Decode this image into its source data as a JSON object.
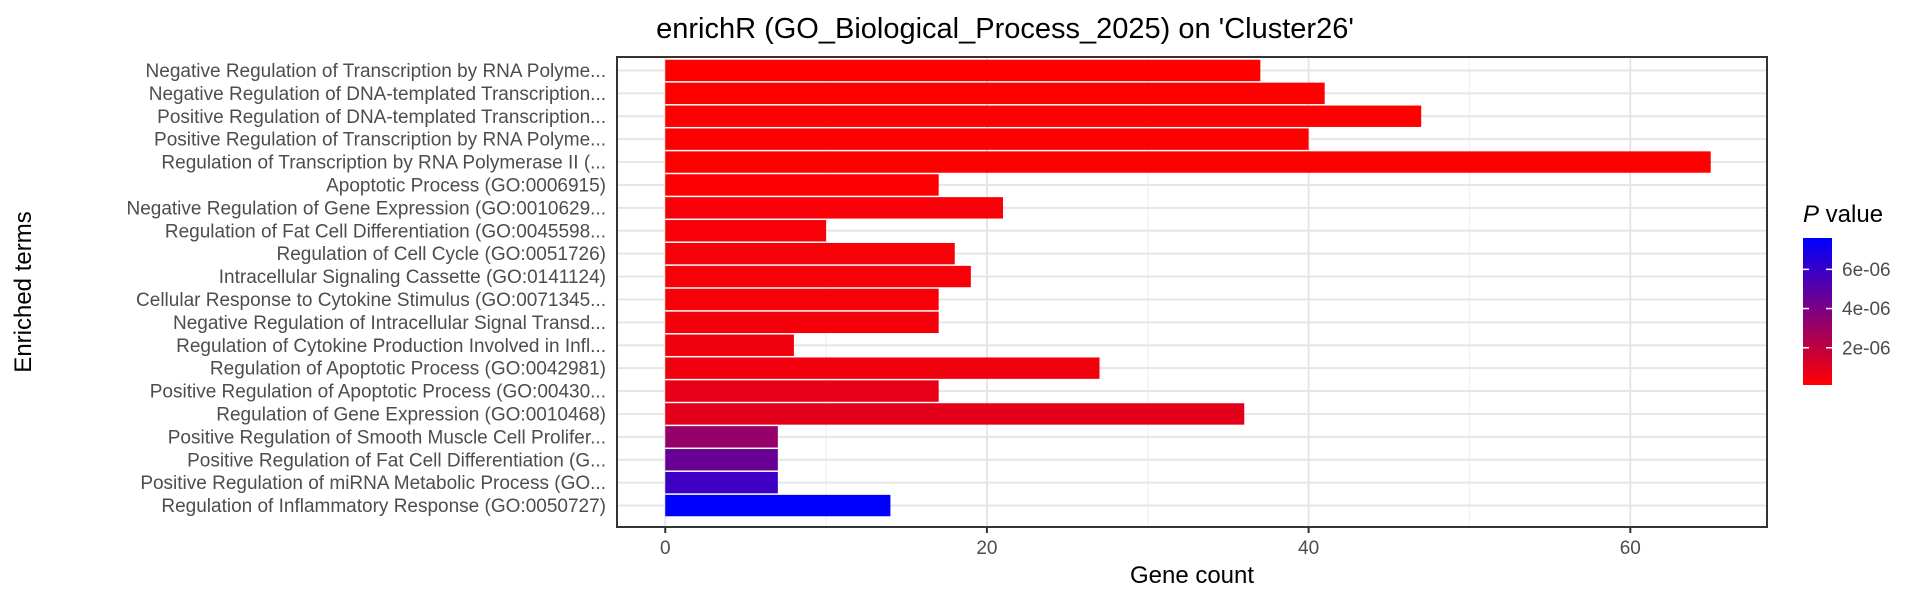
{
  "chart_data": {
    "type": "bar",
    "orientation": "horizontal",
    "title": "enrichR (GO_Biological_Process_2025) on 'Cluster26'",
    "xlabel": "Gene count",
    "ylabel": "Enriched terms",
    "xlim": [
      -3,
      68.5
    ],
    "x_ticks": [
      0,
      20,
      40,
      60
    ],
    "grid": true,
    "legend": {
      "title_italic": "P",
      "title_rest": " value",
      "position": "right",
      "low_color": "#ff0000",
      "high_color": "#0000ff",
      "min": 1e-07,
      "max": 7.6e-06,
      "ticks": [
        {
          "value": 2e-06,
          "label": "2e-06"
        },
        {
          "value": 4e-06,
          "label": "4e-06"
        },
        {
          "value": 6e-06,
          "label": "6e-06"
        }
      ]
    },
    "categories": [
      "Negative Regulation of Transcription by RNA Polyme...",
      "Negative Regulation of DNA-templated Transcription...",
      "Positive Regulation of DNA-templated Transcription...",
      "Positive Regulation of Transcription by RNA Polyme...",
      "Regulation of Transcription by RNA Polymerase II (...",
      "Apoptotic Process (GO:0006915)",
      "Negative Regulation of Gene Expression (GO:0010629...",
      "Regulation of Fat Cell Differentiation (GO:0045598...",
      "Regulation of Cell Cycle (GO:0051726)",
      "Intracellular Signaling Cassette (GO:0141124)",
      "Cellular Response to Cytokine Stimulus (GO:0071345...",
      "Negative Regulation of Intracellular Signal Transd...",
      "Regulation of Cytokine Production Involved in Infl...",
      "Regulation of Apoptotic Process (GO:0042981)",
      "Positive Regulation of Apoptotic Process (GO:00430...",
      "Regulation of Gene Expression (GO:0010468)",
      "Positive Regulation of Smooth Muscle Cell Prolifer...",
      "Positive Regulation of Fat Cell Differentiation (G...",
      "Positive Regulation of miRNA Metabolic Process (GO...",
      "Regulation of Inflammatory Response (GO:0050727)"
    ],
    "values": [
      37,
      41,
      47,
      40,
      65,
      17,
      21,
      10,
      18,
      19,
      17,
      17,
      8,
      27,
      17,
      36,
      7,
      7,
      7,
      14
    ],
    "p_values": [
      1e-07,
      1e-07,
      1e-07,
      1e-07,
      1e-07,
      2e-07,
      3e-07,
      3e-07,
      3e-07,
      3e-07,
      3e-07,
      4e-07,
      5e-07,
      5e-07,
      8e-07,
      9e-07,
      3.2e-06,
      4.5e-06,
      5.8e-06,
      7.6e-06
    ]
  }
}
